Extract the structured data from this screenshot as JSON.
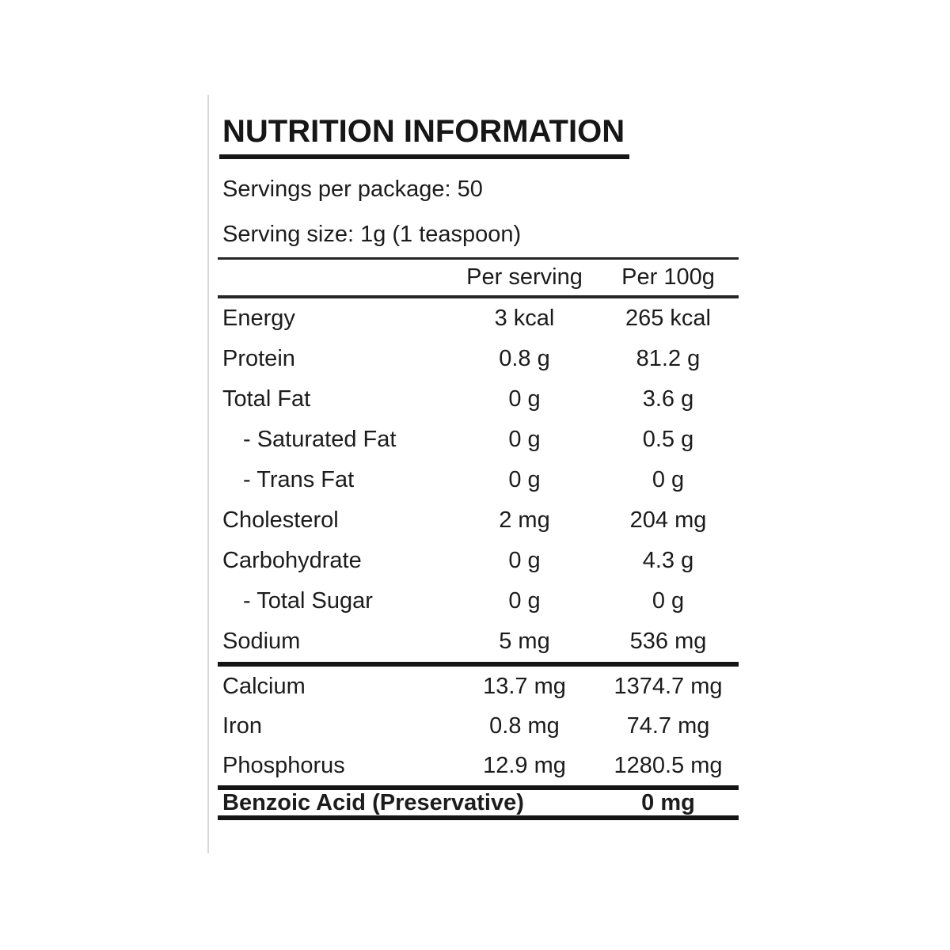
{
  "label": {
    "title": "NUTRITION INFORMATION",
    "servings_per_package": "Servings per package: 50",
    "serving_size": "Serving size: 1g (1 teaspoon)",
    "columns": {
      "per_serving": "Per serving",
      "per_100g": "Per 100g"
    },
    "rows": [
      {
        "name": "Energy",
        "indent": false,
        "per_serving": "3 kcal",
        "per_100g": "265 kcal"
      },
      {
        "name": "Protein",
        "indent": false,
        "per_serving": "0.8 g",
        "per_100g": "81.2 g"
      },
      {
        "name": "Total Fat",
        "indent": false,
        "per_serving": "0 g",
        "per_100g": "3.6 g"
      },
      {
        "name": "- Saturated Fat",
        "indent": true,
        "per_serving": "0 g",
        "per_100g": "0.5 g"
      },
      {
        "name": "- Trans Fat",
        "indent": true,
        "per_serving": "0 g",
        "per_100g": "0 g"
      },
      {
        "name": "Cholesterol",
        "indent": false,
        "per_serving": "2 mg",
        "per_100g": "204 mg"
      },
      {
        "name": "Carbohydrate",
        "indent": false,
        "per_serving": "0 g",
        "per_100g": "4.3 g"
      },
      {
        "name": "- Total Sugar",
        "indent": true,
        "per_serving": "0 g",
        "per_100g": "0 g"
      },
      {
        "name": "Sodium",
        "indent": false,
        "per_serving": "5 mg",
        "per_100g": "536 mg"
      }
    ],
    "minerals": [
      {
        "name": "Calcium",
        "per_serving": "13.7 mg",
        "per_100g": "1374.7 mg"
      },
      {
        "name": "Iron",
        "per_serving": "0.8 mg",
        "per_100g": "74.7 mg"
      },
      {
        "name": "Phosphorus",
        "per_serving": "12.9 mg",
        "per_100g": "1280.5 mg"
      }
    ],
    "preservative": {
      "name": "Benzoic Acid (Preservative)",
      "value": "0 mg"
    },
    "colors": {
      "ink": "#1c1c1c",
      "rule_black": "#141414",
      "left_line_gray": "#d9d9d9",
      "background": "#ffffff"
    }
  }
}
